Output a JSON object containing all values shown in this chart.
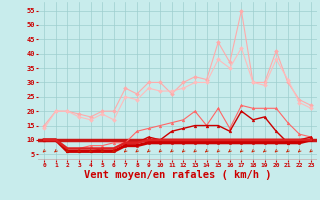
{
  "x": [
    0,
    1,
    2,
    3,
    4,
    5,
    6,
    7,
    8,
    9,
    10,
    11,
    12,
    13,
    14,
    15,
    16,
    17,
    18,
    19,
    20,
    21,
    22,
    23
  ],
  "series": [
    {
      "name": "rafales_max",
      "color": "#ffaaaa",
      "linewidth": 0.8,
      "marker": "D",
      "markersize": 2.0,
      "values": [
        15,
        20,
        20,
        19,
        18,
        20,
        20,
        28,
        26,
        30,
        30,
        26,
        30,
        32,
        31,
        44,
        37,
        55,
        30,
        30,
        41,
        30,
        24,
        22
      ]
    },
    {
      "name": "rafales_moy",
      "color": "#ffbbbb",
      "linewidth": 0.8,
      "marker": "D",
      "markersize": 2.0,
      "values": [
        14,
        20,
        20,
        18,
        17,
        19,
        17,
        25,
        24,
        28,
        27,
        27,
        28,
        30,
        30,
        38,
        35,
        42,
        30,
        29,
        38,
        31,
        23,
        21
      ]
    },
    {
      "name": "vent_max",
      "color": "#ff6666",
      "linewidth": 0.8,
      "marker": "^",
      "markersize": 2.0,
      "values": [
        10,
        10,
        7,
        7,
        8,
        8,
        9,
        9,
        13,
        14,
        15,
        16,
        17,
        20,
        15,
        21,
        14,
        22,
        21,
        21,
        21,
        16,
        12,
        11
      ]
    },
    {
      "name": "vent_moy",
      "color": "#cc0000",
      "linewidth": 1.0,
      "marker": "^",
      "markersize": 2.0,
      "values": [
        10,
        10,
        6,
        6,
        6,
        7,
        7,
        9,
        9,
        11,
        10,
        13,
        14,
        15,
        15,
        15,
        13,
        20,
        17,
        18,
        13,
        9,
        10,
        11
      ]
    },
    {
      "name": "vent_base",
      "color": "#cc0000",
      "linewidth": 2.2,
      "marker": "^",
      "markersize": 1.5,
      "values": [
        10,
        10,
        6,
        6,
        6,
        6,
        6,
        8,
        8,
        9,
        9,
        9,
        9,
        9,
        9,
        9,
        9,
        9,
        9,
        9,
        9,
        9,
        9,
        10
      ]
    },
    {
      "name": "vent_low",
      "color": "#dd2222",
      "linewidth": 1.8,
      "marker": null,
      "markersize": 0,
      "values": [
        10,
        10,
        7,
        7,
        7,
        7,
        7,
        9,
        9,
        10,
        10,
        10,
        10,
        10,
        10,
        10,
        10,
        10,
        10,
        10,
        10,
        10,
        10,
        10
      ]
    }
  ],
  "xlabel": "Vent moyen/en rafales ( km/h )",
  "xlabel_color": "#cc0000",
  "xlabel_fontsize": 7.5,
  "xtick_labels": [
    "0",
    "1",
    "2",
    "3",
    "4",
    "5",
    "6",
    "7",
    "8",
    "9",
    "10",
    "11",
    "12",
    "13",
    "14",
    "15",
    "16",
    "17",
    "18",
    "19",
    "20",
    "21",
    "22",
    "23"
  ],
  "yticks": [
    5,
    10,
    15,
    20,
    25,
    30,
    35,
    40,
    45,
    50,
    55
  ],
  "ylim": [
    3,
    58
  ],
  "xlim": [
    -0.5,
    23.5
  ],
  "bg_color": "#c8ecec",
  "grid_color": "#9ecece",
  "tick_color": "#cc0000",
  "arrow_color": "#cc2200",
  "bottom_line_y": 10
}
